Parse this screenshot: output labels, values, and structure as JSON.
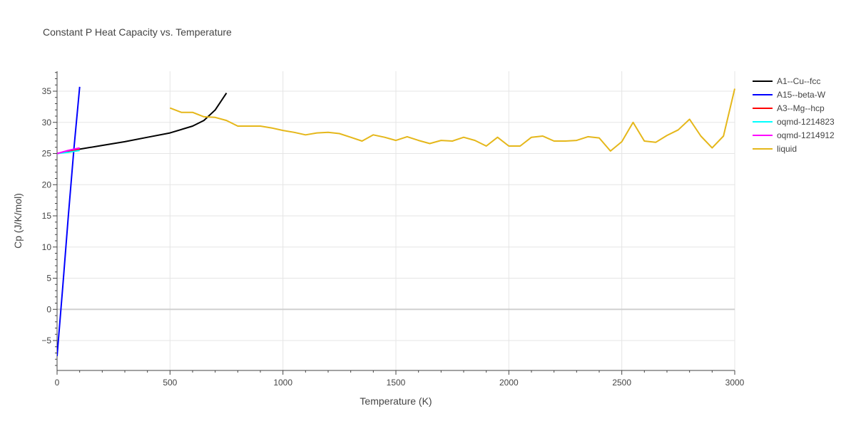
{
  "chart_data": {
    "type": "line",
    "title": "Constant P Heat Capacity vs. Temperature",
    "xlabel": "Temperature (K)",
    "ylabel": "Cp (J/K/mol)",
    "xlim": [
      0,
      3000
    ],
    "ylim": [
      -9.8,
      38.2
    ],
    "xticks": [
      0,
      500,
      1000,
      1500,
      2000,
      2500,
      3000
    ],
    "xtick_labels": [
      "0",
      "500",
      "1000",
      "1500",
      "2000",
      "2500",
      "3000"
    ],
    "yticks": [
      -5,
      0,
      5,
      10,
      15,
      20,
      25,
      30,
      35
    ],
    "ytick_labels": [
      "−5",
      "0",
      "5",
      "10",
      "15",
      "20",
      "25",
      "30",
      "35"
    ],
    "grid": true,
    "legend_position": "right",
    "series": [
      {
        "name": "A1--Cu--fcc",
        "color": "#000000",
        "x": [
          0,
          100,
          200,
          300,
          400,
          500,
          600,
          650,
          700,
          750
        ],
        "y": [
          25.0,
          25.7,
          26.3,
          26.9,
          27.6,
          28.3,
          29.4,
          30.3,
          32.0,
          34.7
        ]
      },
      {
        "name": "A15--beta-W",
        "color": "#0000ff",
        "x": [
          0,
          25,
          50,
          75,
          100
        ],
        "y": [
          -7.5,
          3.5,
          15.0,
          26.0,
          35.7
        ]
      },
      {
        "name": "A3--Mg--hcp",
        "color": "#ff0000",
        "x": [
          0,
          50,
          100
        ],
        "y": [
          25.0,
          25.3,
          25.7
        ]
      },
      {
        "name": "oqmd-1214823",
        "color": "#00ffff",
        "x": [
          0,
          50,
          100
        ],
        "y": [
          25.0,
          25.2,
          25.5
        ]
      },
      {
        "name": "oqmd-1214912",
        "color": "#ff00ff",
        "x": [
          0,
          50,
          100
        ],
        "y": [
          25.0,
          25.5,
          25.9
        ]
      },
      {
        "name": "liquid",
        "color": "#e5b71a",
        "x": [
          500,
          550,
          600,
          650,
          700,
          750,
          800,
          850,
          900,
          950,
          1000,
          1050,
          1100,
          1150,
          1200,
          1250,
          1300,
          1350,
          1400,
          1450,
          1500,
          1550,
          1600,
          1650,
          1700,
          1750,
          1800,
          1850,
          1900,
          1950,
          2000,
          2050,
          2100,
          2150,
          2200,
          2250,
          2300,
          2350,
          2400,
          2450,
          2500,
          2550,
          2600,
          2650,
          2700,
          2750,
          2800,
          2850,
          2900,
          2950,
          3000
        ],
        "y": [
          32.3,
          31.6,
          31.6,
          30.9,
          30.8,
          30.3,
          29.4,
          29.4,
          29.4,
          29.1,
          28.7,
          28.4,
          28.0,
          28.3,
          28.4,
          28.2,
          27.6,
          27.0,
          28.0,
          27.6,
          27.1,
          27.7,
          27.1,
          26.6,
          27.1,
          27.0,
          27.6,
          27.1,
          26.2,
          27.6,
          26.2,
          26.2,
          27.6,
          27.8,
          27.0,
          27.0,
          27.1,
          27.7,
          27.5,
          25.4,
          26.9,
          30.0,
          27.0,
          26.8,
          27.9,
          28.8,
          30.5,
          27.8,
          25.9,
          27.8,
          35.4
        ]
      }
    ]
  }
}
